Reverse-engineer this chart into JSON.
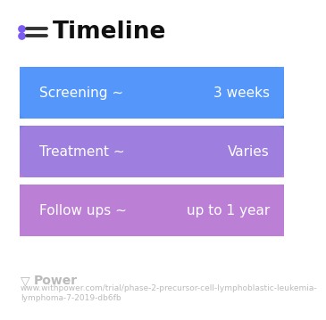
{
  "title": "Timeline",
  "title_icon_color": "#7b5cf0",
  "title_fontsize": 19,
  "title_fontweight": "bold",
  "bg_color": "#ffffff",
  "rows": [
    {
      "left_label": "Screening ~",
      "right_label": "3 weeks",
      "color_top": "#5b9cff",
      "color_bottom": "#4d8ff5"
    },
    {
      "left_label": "Treatment ~",
      "right_label": "Varies",
      "color_top": "#7b7ee8",
      "color_bottom": "#c07fd4"
    },
    {
      "left_label": "Follow ups ~",
      "right_label": "up to 1 year",
      "color_top": "#b07ed4",
      "color_bottom": "#c580d8"
    }
  ],
  "footer_text": "Power",
  "footer_url": "www.withpower.com/trial/phase-2-precursor-cell-lymphoblastic-leukemia-\nlymphoma-7-2019-db6fb",
  "footer_fontsize": 6.5,
  "footer_color": "#bbbbbb",
  "row_text_color": "#ffffff",
  "row_text_fontsize": 11
}
